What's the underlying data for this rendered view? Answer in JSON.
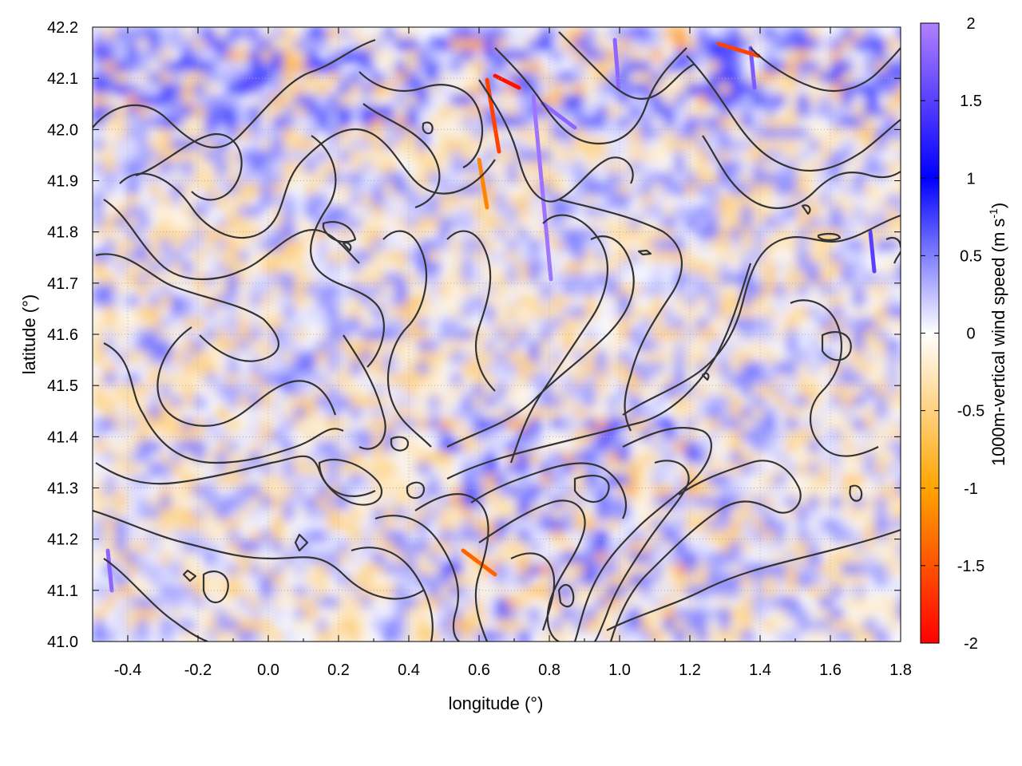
{
  "chart_data": {
    "type": "heatmap",
    "xlabel": "longitude (°)",
    "ylabel": "latitude (°)",
    "xlim": [
      -0.5,
      1.8
    ],
    "ylim": [
      41.0,
      42.2
    ],
    "x_ticks": [
      "-0.4",
      "-0.2",
      "0.0",
      "0.2",
      "0.4",
      "0.6",
      "0.8",
      "1.0",
      "1.2",
      "1.4",
      "1.6",
      "1.8"
    ],
    "y_ticks": [
      "41.0",
      "41.1",
      "41.2",
      "41.3",
      "41.4",
      "41.5",
      "41.6",
      "41.7",
      "41.8",
      "41.9",
      "42.0",
      "42.1",
      "42.2"
    ],
    "grid": "dotted",
    "overlay": "terrain contour lines (black)",
    "colorbar": {
      "label_main": "1000m-vertical wind speed (m s",
      "label_sup": "-1",
      "label_end": ")",
      "range": [
        -2,
        2
      ],
      "ticks": [
        "2",
        "1.5",
        "1",
        "0.5",
        "0",
        "-0.5",
        "-1",
        "-1.5",
        "-2"
      ],
      "palette": [
        "#ff0000",
        "#ffa500",
        "#ffffff",
        "#0000ff",
        "#b080ff"
      ]
    }
  }
}
